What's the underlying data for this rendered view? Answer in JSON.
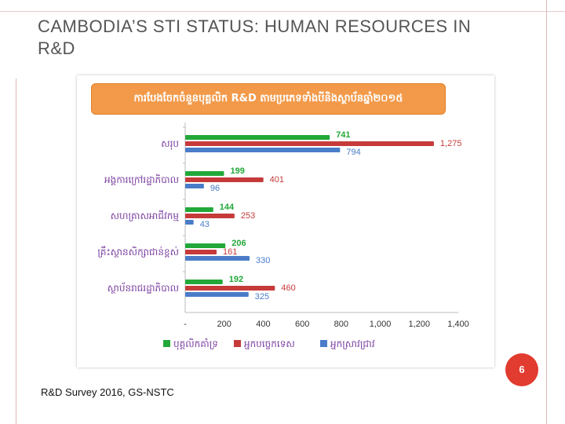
{
  "slide": {
    "title": "CAMBODIA’S STI STATUS: HUMAN RESOURCES IN R&D",
    "page_number": "6",
    "source": "R&D Survey 2016, GS-NSTC"
  },
  "chart_data": {
    "type": "bar",
    "orientation": "horizontal",
    "title": "ការបែងចែកចំនួនបុគ្គលិក R&D តាមប្រភេទទាំងបីនិងស្ថាប័នឆ្នាំ២០១៥",
    "categories": [
      "សរុប",
      "អង្គការក្រៅរដ្ឋាភិបាល",
      "សហគ្រាសអាជីវកម្ម",
      "គ្រឹះស្ថានសិក្សាជាន់ខ្ពស់",
      "ស្ថាប័នរាជរដ្ឋាភិបាល"
    ],
    "series": [
      {
        "name": "បុគ្គលិកគាំទ្រ",
        "color": "#22a838",
        "values": [
          741,
          199,
          144,
          206,
          192
        ],
        "labels": [
          "741",
          "199",
          "144",
          "206",
          "192"
        ]
      },
      {
        "name": "អ្នកបច្ចេកទេស",
        "color": "#c63a3a",
        "values": [
          1275,
          401,
          253,
          161,
          460
        ],
        "labels": [
          "1,275",
          "401",
          "253",
          "161",
          "460"
        ]
      },
      {
        "name": "អ្នកស្រាវជ្រាវ",
        "color": "#4a7cc8",
        "values": [
          794,
          96,
          43,
          330,
          325
        ],
        "labels": [
          "794",
          "96",
          "43",
          "330",
          "325"
        ]
      }
    ],
    "xlim": [
      0,
      1400
    ],
    "xticks": [
      "-",
      "200",
      "400",
      "600",
      "800",
      "1,000",
      "1,200",
      "1,400"
    ],
    "legend_position": "bottom",
    "grid": false
  }
}
